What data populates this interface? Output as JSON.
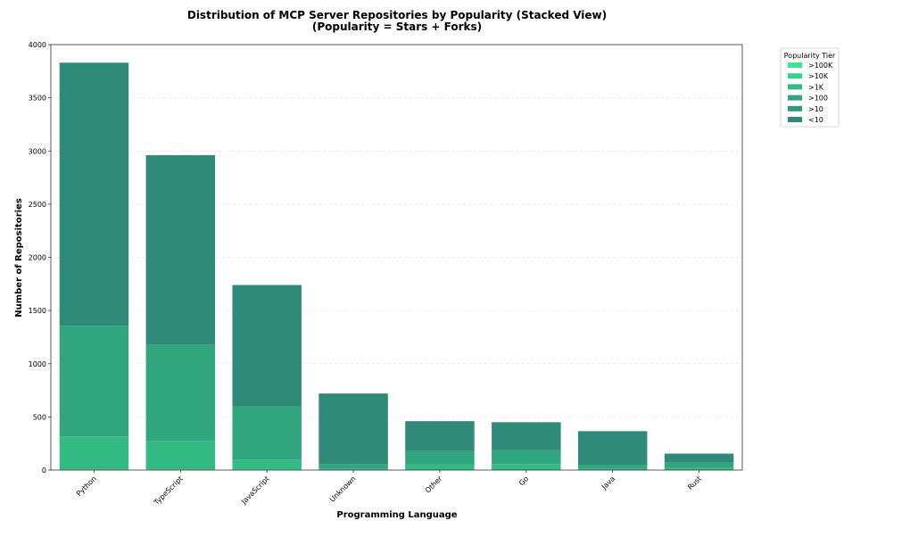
{
  "chart_data": {
    "type": "bar",
    "stacked": true,
    "title": "Distribution of MCP Server Repositories by Popularity (Stacked View)",
    "subtitle": "(Popularity = Stars + Forks)",
    "xlabel": "Programming Language",
    "ylabel": "Number of Repositories",
    "ylim": [
      0,
      4000
    ],
    "yticks": [
      0,
      500,
      1000,
      1500,
      2000,
      2500,
      3000,
      3500,
      4000
    ],
    "grid": true,
    "legend_title": "Popularity Tier",
    "legend_placement": "outside-right-top",
    "categories": [
      "Python",
      "TypeScript",
      "JavaScript",
      "Unknown",
      "Other",
      "Go",
      "Java",
      "Rust"
    ],
    "series": [
      {
        "name": ">100K",
        "color": "#3de391",
        "values": [
          1,
          1,
          1,
          0,
          0,
          0,
          0,
          0
        ]
      },
      {
        "name": ">10K",
        "color": "#38d48a",
        "values": [
          5,
          5,
          4,
          1,
          1,
          1,
          0,
          0
        ]
      },
      {
        "name": ">1K",
        "color": "#34bb84",
        "values": [
          310,
          270,
          95,
          10,
          50,
          55,
          10,
          20
        ]
      },
      {
        "name": ">100",
        "color": "#31a67e",
        "values": [
          1040,
          900,
          500,
          45,
          130,
          130,
          40,
          50
        ]
      },
      {
        "name": ">10",
        "color": "#2f9a79",
        "values": [
          0,
          0,
          0,
          0,
          0,
          0,
          0,
          0
        ]
      },
      {
        "name": "<10",
        "color": "#2f8a78",
        "values": [
          2474,
          1784,
          1140,
          664,
          279,
          264,
          316,
          85
        ]
      }
    ]
  }
}
